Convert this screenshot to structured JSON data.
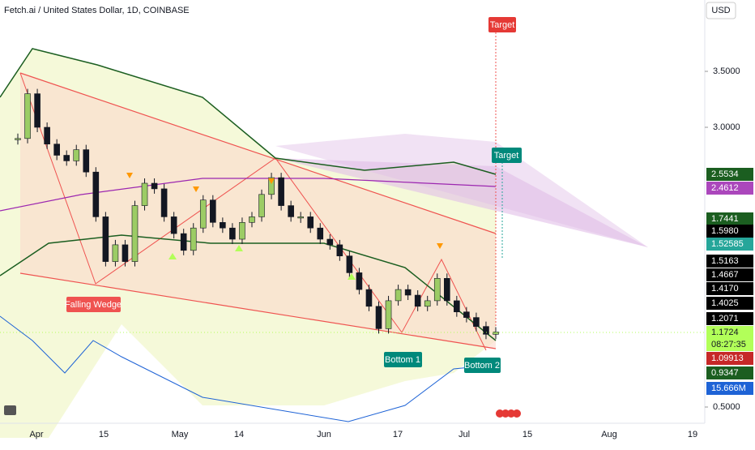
{
  "header": {
    "title": "Fetch.ai / United States Dollar, 1D, COINBASE",
    "currency": "USD"
  },
  "price_axis": {
    "ticks": [
      {
        "value": 3.5,
        "label": "3.5000"
      },
      {
        "value": 3.0,
        "label": "3.0000"
      },
      {
        "value": 0.5,
        "label": "0.5000"
      }
    ]
  },
  "price_badges": [
    {
      "label": "2.5534",
      "color": "#1b5e20"
    },
    {
      "label": "2.4612",
      "color": "#ab47bc"
    },
    {
      "label": "1.7441",
      "color": "#1b5e20"
    },
    {
      "label": "1.5980",
      "color": "#000000"
    },
    {
      "label": "1.52585",
      "color": "#26a69a"
    },
    {
      "label": "1.5163",
      "color": "#000000"
    },
    {
      "label": "1.4667",
      "color": "#000000"
    },
    {
      "label": "1.4170",
      "color": "#000000"
    },
    {
      "label": "1.4025",
      "color": "#000000"
    },
    {
      "label": "1.2071",
      "color": "#000000"
    },
    {
      "label": "1.1724",
      "color": "#b2ff59"
    },
    {
      "label": "08:27:35",
      "color": "#b2ff59"
    },
    {
      "label": "1.09913",
      "color": "#c62828"
    },
    {
      "label": "0.9347",
      "color": "#1b5e20"
    },
    {
      "label": "15.666M",
      "color": "#1e63d6"
    }
  ],
  "date_axis": [
    "Apr",
    "15",
    "May",
    "14",
    "Jun",
    "17",
    "Jul",
    "15",
    "Aug",
    "19"
  ],
  "annotations": {
    "falling_wedge": "Falling Wedge",
    "bottom1": "Bottom 1",
    "bottom2": "Bottom 2",
    "target_high": "Target",
    "target_low": "Target"
  },
  "closes": [
    2.9,
    3.3,
    3.0,
    2.85,
    2.75,
    2.7,
    2.8,
    2.6,
    2.2,
    1.8,
    1.95,
    1.8,
    2.3,
    2.5,
    2.45,
    2.2,
    2.05,
    1.9,
    2.1,
    2.35,
    2.15,
    2.1,
    2.0,
    2.15,
    2.2,
    2.4,
    2.55,
    2.3,
    2.2,
    2.2,
    2.1,
    2.0,
    1.95,
    1.85,
    1.7,
    1.55,
    1.4,
    1.2,
    1.45,
    1.55,
    1.5,
    1.4,
    1.45,
    1.65,
    1.45,
    1.35,
    1.3,
    1.22,
    1.15,
    1.17
  ]
}
